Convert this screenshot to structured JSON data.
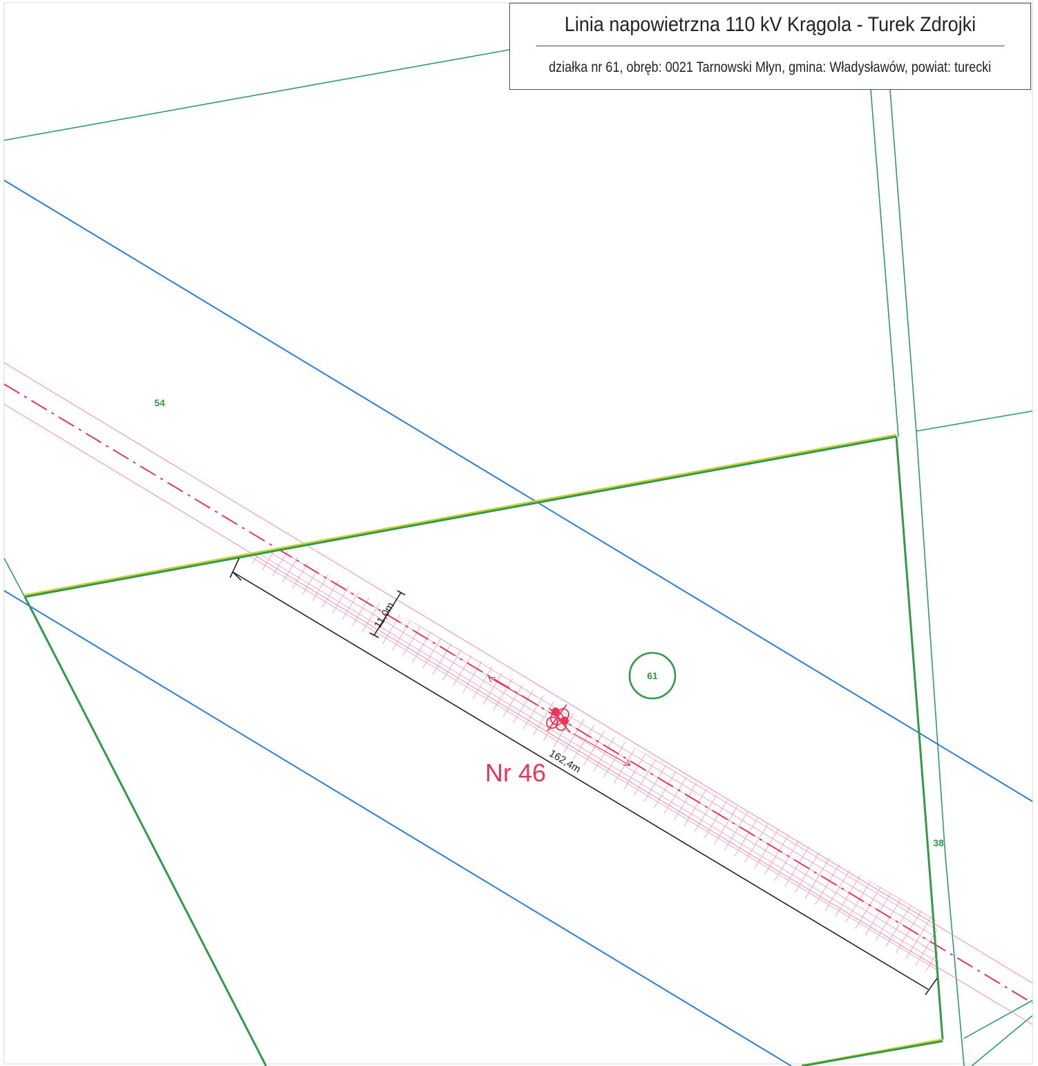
{
  "header": {
    "title": "Linia napowietrzna 110 kV Krągola - Turek Zdrojki",
    "subtitle": "działka nr 61, obręb: 0021 Tarnowski Młyn, gmina: Władysławów, powiat: turecki"
  },
  "parcels": {
    "p54": "54",
    "p61": "61",
    "p38": "38"
  },
  "dimensions": {
    "width": "11,0m",
    "length": "162,4m"
  },
  "pole": {
    "label": "Nr 46"
  },
  "colors": {
    "parcel_boundary": "#2e9a4a",
    "road_edge": "#2a7fd4",
    "power_line": "#e8365a",
    "dimension": "#222222"
  }
}
